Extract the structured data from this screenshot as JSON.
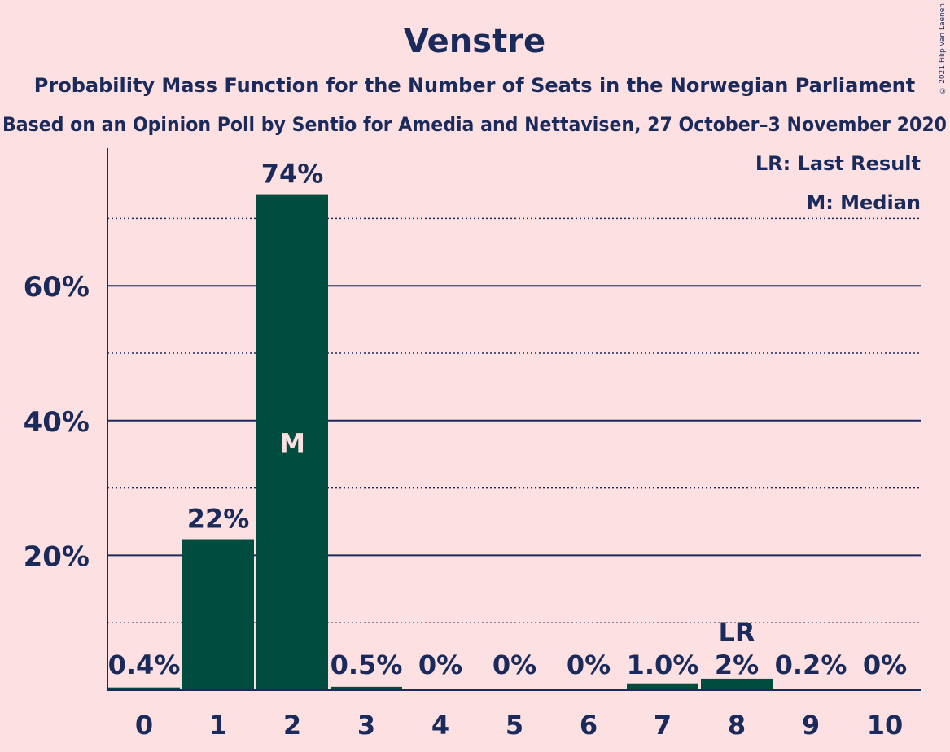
{
  "copyright": "© 2021 Filip van Laenen",
  "chart_data": {
    "type": "bar",
    "title": "Venstre",
    "subtitle": "Probability Mass Function for the Number of Seats in the Norwegian Parliament",
    "subtitle2": "Based on an Opinion Poll by Sentio for Amedia and Nettavisen, 27 October–3 November 2020",
    "categories": [
      "0",
      "1",
      "2",
      "3",
      "4",
      "5",
      "6",
      "7",
      "8",
      "9",
      "10"
    ],
    "values": [
      0.4,
      22.4,
      73.6,
      0.5,
      0,
      0,
      0,
      1.0,
      1.7,
      0.2,
      0
    ],
    "value_labels": [
      "0.4%",
      "22%",
      "74%",
      "0.5%",
      "0%",
      "0%",
      "0%",
      "1.0%",
      "2%",
      "0.2%",
      "0%"
    ],
    "ylim": [
      0,
      80
    ],
    "yticks": [
      20,
      40,
      60
    ],
    "ytick_labels": [
      "20%",
      "40%",
      "60%"
    ],
    "minor_gridlines": [
      10,
      30,
      50,
      70
    ],
    "median_index": 2,
    "median_label": "M",
    "last_result_index": 8,
    "last_result_label": "LR",
    "legend": [
      "LR: Last Result",
      "M: Median"
    ],
    "legend_position": "top-right",
    "colors": {
      "bar": "#004d40",
      "text": "#1a2a5a",
      "background": "#fde0e2",
      "grid": "#1a2a5a",
      "median_text": "#fde0e2"
    }
  }
}
